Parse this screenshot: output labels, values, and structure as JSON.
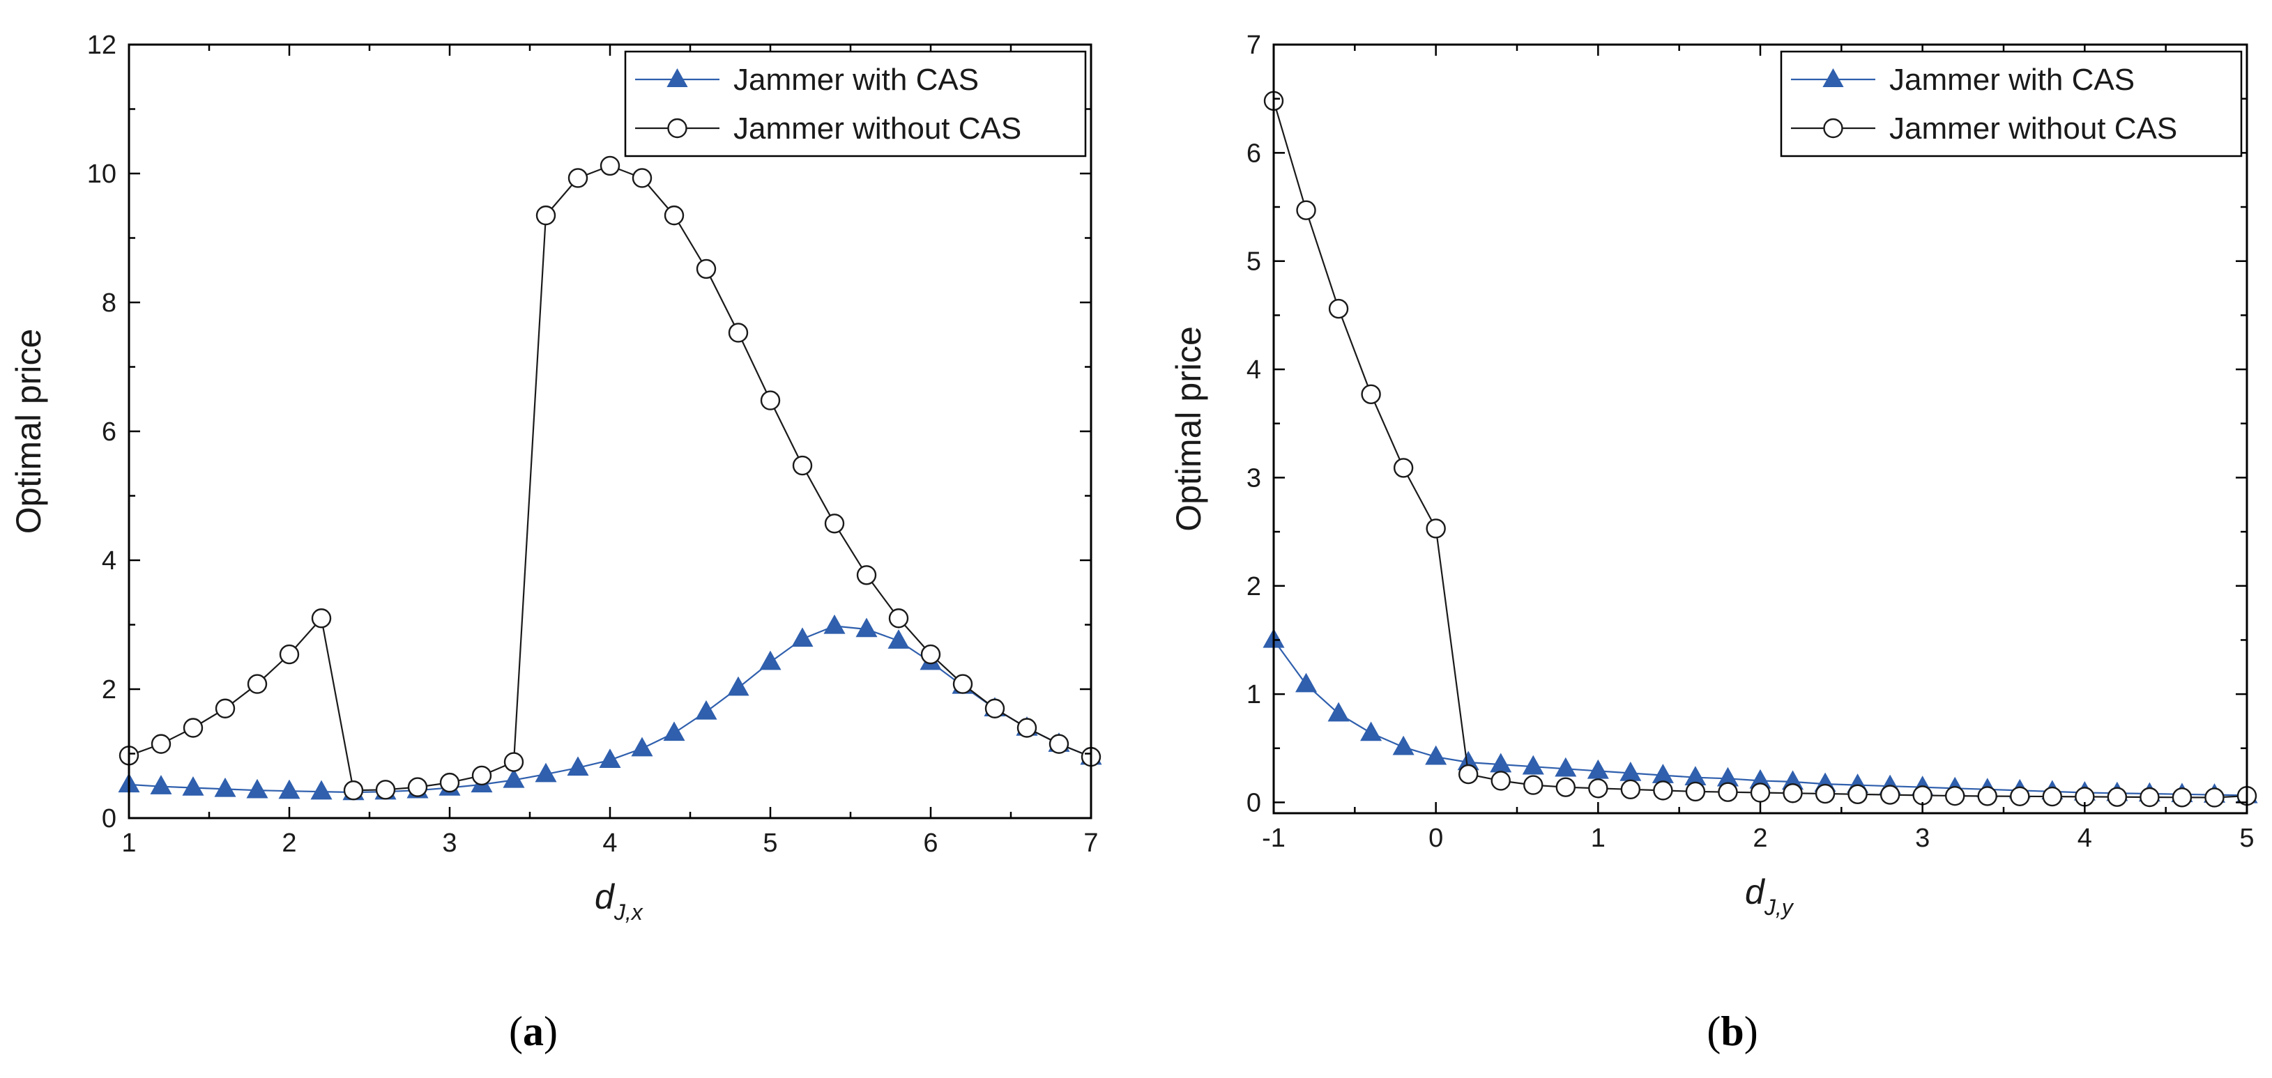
{
  "colors": {
    "with_cas": "#2f5fad",
    "without_cas": "#1a1a1a",
    "axis": "#000000",
    "marker_fill_without": "#ffffff"
  },
  "chart_data": [
    {
      "type": "line",
      "panel": "a",
      "caption": "a",
      "xlabel": {
        "symbol": "d",
        "subscript": "J,x"
      },
      "ylabel": "Optimal price",
      "xlim": [
        1,
        7
      ],
      "ylim": [
        0,
        12
      ],
      "xticks": [
        1,
        2,
        3,
        4,
        5,
        6,
        7
      ],
      "yticks": [
        0,
        2,
        4,
        6,
        8,
        10,
        12
      ],
      "legend": {
        "position": "top-right",
        "entries": [
          "Jammer with CAS",
          "Jammer without CAS"
        ]
      },
      "grid": false,
      "series": [
        {
          "name": "Jammer with CAS",
          "marker": "filled-triangle",
          "x": [
            1.0,
            1.2,
            1.4,
            1.6,
            1.8,
            2.0,
            2.2,
            2.4,
            2.6,
            2.8,
            3.0,
            3.2,
            3.4,
            3.6,
            3.8,
            4.0,
            4.2,
            4.4,
            4.6,
            4.8,
            5.0,
            5.2,
            5.4,
            5.6,
            5.8,
            6.0,
            6.2,
            6.4,
            6.6,
            6.8,
            7.0
          ],
          "y": [
            0.52,
            0.49,
            0.47,
            0.45,
            0.43,
            0.42,
            0.41,
            0.4,
            0.41,
            0.43,
            0.47,
            0.52,
            0.59,
            0.68,
            0.78,
            0.9,
            1.08,
            1.32,
            1.65,
            2.02,
            2.42,
            2.78,
            2.98,
            2.93,
            2.75,
            2.42,
            2.05,
            1.7,
            1.4,
            1.15,
            0.95
          ]
        },
        {
          "name": "Jammer without CAS",
          "marker": "open-circle",
          "x": [
            1.0,
            1.2,
            1.4,
            1.6,
            1.8,
            2.0,
            2.2,
            2.4,
            2.6,
            2.8,
            3.0,
            3.2,
            3.4,
            3.6,
            3.8,
            4.0,
            4.2,
            4.4,
            4.6,
            4.8,
            5.0,
            5.2,
            5.4,
            5.6,
            5.8,
            6.0,
            6.2,
            6.4,
            6.6,
            6.8,
            7.0
          ],
          "y": [
            0.97,
            1.15,
            1.4,
            1.7,
            2.08,
            2.54,
            3.1,
            0.43,
            0.44,
            0.48,
            0.55,
            0.66,
            0.87,
            9.35,
            9.93,
            10.12,
            9.93,
            9.35,
            8.52,
            7.53,
            6.48,
            5.47,
            4.57,
            3.77,
            3.1,
            2.54,
            2.08,
            1.7,
            1.4,
            1.15,
            0.95
          ]
        }
      ]
    },
    {
      "type": "line",
      "panel": "b",
      "caption": "b",
      "xlabel": {
        "symbol": "d",
        "subscript": "J,y"
      },
      "ylabel": "Optimal price",
      "xlim": [
        -1,
        5
      ],
      "ylim": [
        -0.1,
        7
      ],
      "xticks": [
        -1,
        0,
        1,
        2,
        3,
        4,
        5
      ],
      "yticks": [
        0,
        1,
        2,
        3,
        4,
        5,
        6,
        7
      ],
      "legend": {
        "position": "top-right",
        "entries": [
          "Jammer with CAS",
          "Jammer without CAS"
        ]
      },
      "grid": false,
      "series": [
        {
          "name": "Jammer with CAS",
          "marker": "filled-triangle",
          "x": [
            -1.0,
            -0.8,
            -0.6,
            -0.4,
            -0.2,
            0.0,
            0.2,
            0.4,
            0.6,
            0.8,
            1.0,
            1.2,
            1.4,
            1.6,
            1.8,
            2.0,
            2.2,
            2.4,
            2.6,
            2.8,
            3.0,
            3.2,
            3.4,
            3.6,
            3.8,
            4.0,
            4.2,
            4.4,
            4.6,
            4.8,
            5.0
          ],
          "y": [
            1.5,
            1.09,
            0.82,
            0.64,
            0.51,
            0.42,
            0.37,
            0.35,
            0.33,
            0.31,
            0.29,
            0.27,
            0.25,
            0.23,
            0.22,
            0.2,
            0.19,
            0.17,
            0.16,
            0.15,
            0.14,
            0.13,
            0.12,
            0.11,
            0.1,
            0.09,
            0.085,
            0.08,
            0.075,
            0.07,
            0.065
          ]
        },
        {
          "name": "Jammer without CAS",
          "marker": "open-circle",
          "x": [
            -1.0,
            -0.8,
            -0.6,
            -0.4,
            -0.2,
            0.0,
            0.2,
            0.4,
            0.6,
            0.8,
            1.0,
            1.2,
            1.4,
            1.6,
            1.8,
            2.0,
            2.2,
            2.4,
            2.6,
            2.8,
            3.0,
            3.2,
            3.4,
            3.6,
            3.8,
            4.0,
            4.2,
            4.4,
            4.6,
            4.8,
            5.0
          ],
          "y": [
            6.48,
            5.47,
            4.56,
            3.77,
            3.09,
            2.53,
            0.26,
            0.2,
            0.16,
            0.14,
            0.13,
            0.12,
            0.11,
            0.1,
            0.095,
            0.09,
            0.085,
            0.08,
            0.075,
            0.07,
            0.065,
            0.06,
            0.058,
            0.056,
            0.054,
            0.052,
            0.05,
            0.048,
            0.046,
            0.045,
            0.06
          ]
        }
      ]
    }
  ]
}
